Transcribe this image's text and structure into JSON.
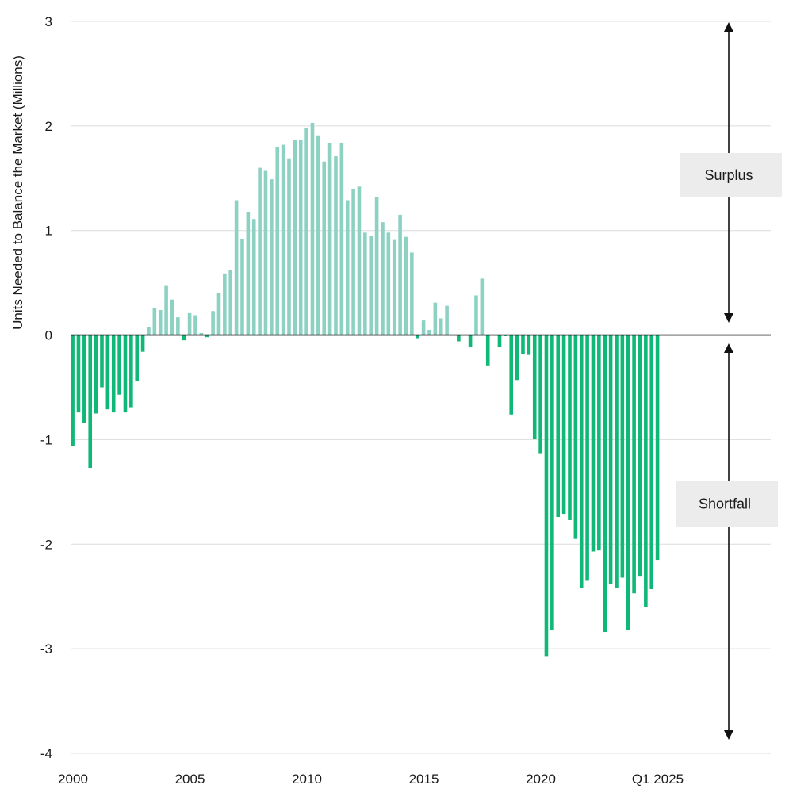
{
  "chart_data": {
    "type": "bar",
    "ylabel": "Units Needed to Balance the Market (Millions)",
    "ylim": [
      -4,
      3
    ],
    "yticks": [
      3,
      2,
      1,
      0,
      -1,
      -2,
      -3,
      -4
    ],
    "x_tick_labels": [
      {
        "label": "2000",
        "index": 0
      },
      {
        "label": "2005",
        "index": 20
      },
      {
        "label": "2010",
        "index": 40
      },
      {
        "label": "2015",
        "index": 60
      },
      {
        "label": "2020",
        "index": 80
      },
      {
        "label": "Q1 2025",
        "index": 100
      }
    ],
    "x_range_quarters": [
      0,
      120
    ],
    "first_quarter": "Q1 2000",
    "last_quarter": "Q1 2025",
    "values": [
      -1.06,
      -0.74,
      -0.84,
      -1.27,
      -0.75,
      -0.5,
      -0.71,
      -0.74,
      -0.57,
      -0.74,
      -0.69,
      -0.44,
      -0.16,
      0.08,
      0.26,
      0.24,
      0.47,
      0.34,
      0.17,
      -0.05,
      0.21,
      0.19,
      0.02,
      -0.02,
      0.23,
      0.4,
      0.59,
      0.62,
      1.29,
      0.92,
      1.18,
      1.11,
      1.6,
      1.57,
      1.49,
      1.8,
      1.82,
      1.69,
      1.87,
      1.87,
      1.98,
      2.03,
      1.91,
      1.66,
      1.84,
      1.71,
      1.84,
      1.29,
      1.4,
      1.42,
      0.98,
      0.95,
      1.32,
      1.08,
      0.98,
      0.91,
      1.15,
      0.94,
      0.79,
      -0.03,
      0.14,
      0.05,
      0.31,
      0.16,
      0.28,
      0.0,
      -0.06,
      0.0,
      -0.11,
      0.38,
      0.54,
      -0.29,
      0.0,
      -0.11,
      -0.01,
      -0.76,
      -0.43,
      -0.18,
      -0.19,
      -0.99,
      -1.13,
      -3.07,
      -2.82,
      -1.74,
      -1.71,
      -1.77,
      -1.95,
      -2.42,
      -2.35,
      -2.07,
      -2.06,
      -2.84,
      -2.38,
      -2.42,
      -2.32,
      -2.82,
      -2.47,
      -2.31,
      -2.6,
      -2.43,
      -2.15
    ],
    "colors": {
      "surplus": "#8dd1c3",
      "shortfall": "#10b877",
      "grid": "#dcdcdc",
      "zero_line": "#111111",
      "annotation_box": "#ececec"
    },
    "annotations": [
      {
        "text": "Surplus",
        "direction": "up"
      },
      {
        "text": "Shortfall",
        "direction": "down"
      }
    ],
    "grid": true
  }
}
